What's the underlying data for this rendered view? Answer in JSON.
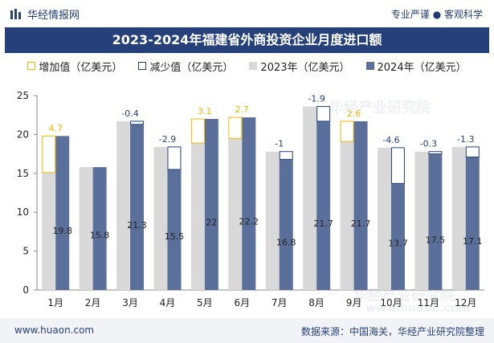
{
  "header": {
    "brand": "华经情报网",
    "tagline": "专业严谨 ● 客观科学"
  },
  "title": "2023-2024年福建省外商投资企业月度进口额",
  "legend": {
    "increase": "增加值（亿美元）",
    "decrease": "减少值（亿美元）",
    "y2023": "2023年（亿美元）",
    "y2024": "2024年（亿美元）"
  },
  "footer": {
    "website": "www.huaon.com",
    "source": "数据来源：中国海关，华经产业研究院整理"
  },
  "watermark": {
    "name": "华经产业研究院",
    "url": "www.huaon.com"
  },
  "colors": {
    "series2023": "#d9d9d9",
    "series2024": "#5b6f9b",
    "increase": "#f5b800",
    "decrease": "#26417a",
    "title_bg": "#26417a"
  },
  "chart_data": {
    "type": "bar",
    "categories": [
      "1月",
      "2月",
      "3月",
      "4月",
      "5月",
      "6月",
      "7月",
      "8月",
      "9月",
      "10月",
      "11月",
      "12月"
    ],
    "series": [
      {
        "name": "2023年（亿美元）",
        "values": [
          15.1,
          15.8,
          21.7,
          18.4,
          18.9,
          19.5,
          17.8,
          23.6,
          19.1,
          18.3,
          17.8,
          18.4
        ]
      },
      {
        "name": "2024年（亿美元）",
        "values": [
          19.8,
          15.8,
          21.3,
          15.5,
          22,
          22.2,
          16.8,
          21.7,
          21.7,
          13.7,
          17.5,
          17.1
        ]
      }
    ],
    "changes": [
      4.7,
      null,
      -0.4,
      -2.9,
      3.1,
      2.7,
      -1,
      -1.9,
      2.6,
      -4.6,
      -0.3,
      -1.3
    ],
    "change_labels": [
      "4.7",
      "",
      "-0.4",
      "-2.9",
      "3.1",
      "2.7",
      "-1",
      "-1.9",
      "2.6",
      "-4.6",
      "-0.3",
      "-1.3"
    ],
    "value_labels": [
      "19.8",
      "15.8",
      "21.3",
      "15.5",
      "22",
      "22.2",
      "16.8",
      "21.7",
      "21.7",
      "13.7",
      "17.5",
      "17.1"
    ],
    "ylim": [
      0,
      25
    ],
    "yticks": [
      0,
      5,
      10,
      15,
      20,
      25
    ],
    "title": "2023-2024年福建省外商投资企业月度进口额",
    "xlabel": "",
    "ylabel": ""
  }
}
